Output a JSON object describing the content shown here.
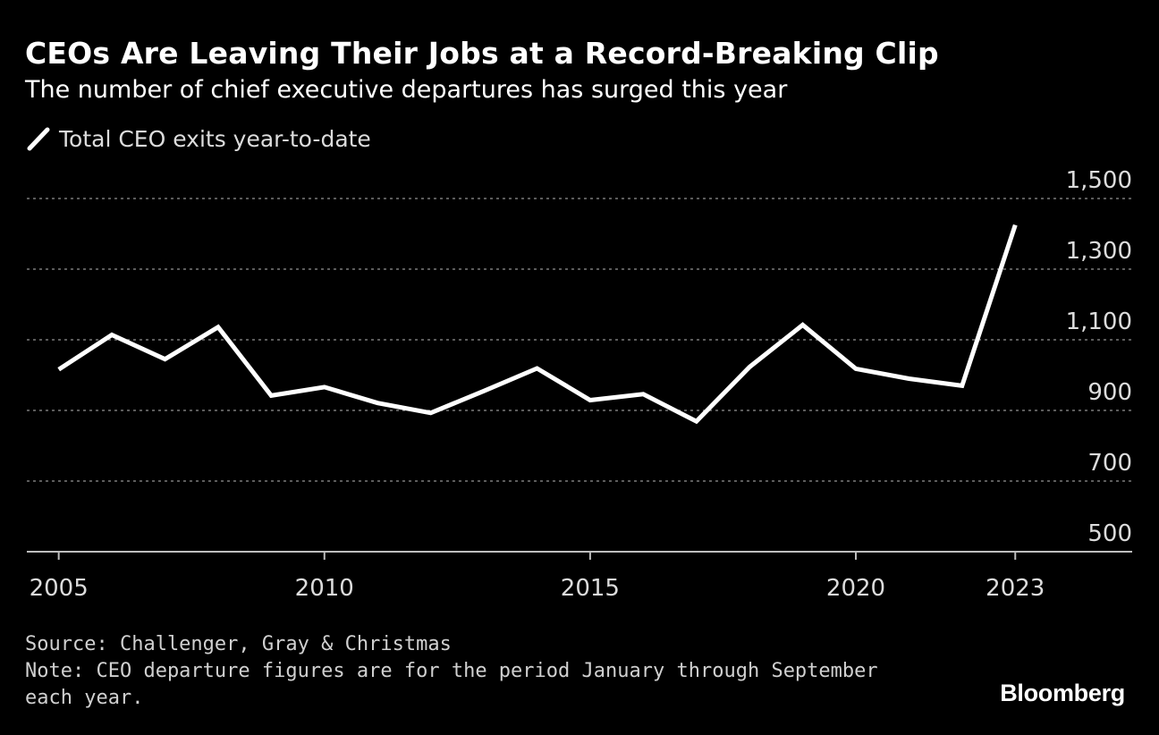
{
  "header": {
    "title": "CEOs Are Leaving Their Jobs at a Record-Breaking Clip",
    "subtitle": "The number of chief executive departures has surged this year"
  },
  "footer": {
    "source": "Source: Challenger, Gray & Christmas",
    "note": "Note: CEO departure figures are for the period January through September each year.",
    "brand": "Bloomberg"
  },
  "colors": {
    "background": "#000000",
    "line": "#ffffff",
    "grid": "#7a7a7a",
    "text": "#ffffff"
  },
  "chart_data": {
    "type": "line",
    "title": "CEOs Are Leaving Their Jobs at a Record-Breaking Clip",
    "subtitle": "The number of chief executive departures has surged this year",
    "xlabel": "",
    "ylabel": "",
    "x": [
      2005,
      2006,
      2007,
      2008,
      2009,
      2010,
      2011,
      2012,
      2013,
      2014,
      2015,
      2016,
      2017,
      2018,
      2019,
      2020,
      2021,
      2022,
      2023
    ],
    "series": [
      {
        "name": "Total CEO exits year-to-date",
        "values": [
          1016,
          1114,
          1045,
          1136,
          942,
          966,
          921,
          893,
          955,
          1019,
          929,
          946,
          869,
          1023,
          1142,
          1018,
          990,
          970,
          1425
        ]
      }
    ],
    "ylim": [
      500,
      1500
    ],
    "y_ticks": [
      500,
      700,
      900,
      1100,
      1300,
      1500
    ],
    "y_tick_labels": [
      "500",
      "700",
      "900",
      "1,100",
      "1,300",
      "1,500"
    ],
    "x_ticks": [
      2005,
      2010,
      2015,
      2020,
      2023
    ],
    "x_tick_labels": [
      "2005",
      "2010",
      "2015",
      "2020",
      "2023"
    ],
    "grid": true,
    "legend": "top-left"
  }
}
